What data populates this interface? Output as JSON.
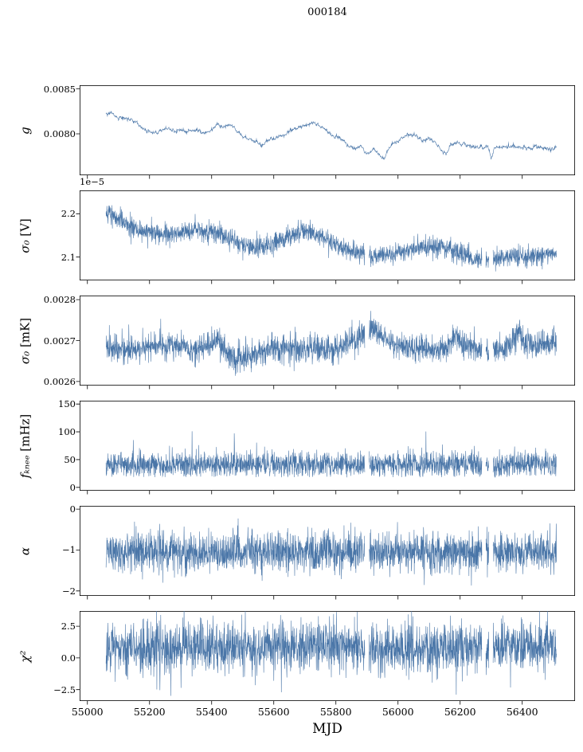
{
  "chart_data": {
    "type": "line",
    "title": "000184",
    "xlabel": "MJD",
    "color": "#4a76a8",
    "xlim": [
      54975,
      56570
    ],
    "x_data_range": [
      55060,
      56510
    ],
    "x_ticks": [
      55000,
      55200,
      55400,
      55600,
      55800,
      56000,
      56200,
      56400
    ],
    "x_tick_labels": [
      "55000",
      "55200",
      "55400",
      "55600",
      "55800",
      "56000",
      "56200",
      "56400"
    ],
    "gaps": [
      [
        55893,
        55906
      ],
      [
        56270,
        56283
      ],
      [
        56293,
        56306
      ]
    ],
    "panels": [
      {
        "ylabel": "g",
        "ylabel_unit": "",
        "ticks": [
          0.008,
          0.0085
        ],
        "tick_labels": [
          "0.0080",
          "0.0085"
        ],
        "ylim": [
          0.00754,
          0.00854
        ],
        "kind": "smooth",
        "noise": 9.5e-06,
        "keypoints": {
          "x": [
            55060,
            55080,
            55100,
            55120,
            55140,
            55160,
            55180,
            55200,
            55220,
            55240,
            55260,
            55280,
            55300,
            55320,
            55340,
            55360,
            55380,
            55400,
            55420,
            55440,
            55460,
            55480,
            55500,
            55520,
            55540,
            55560,
            55580,
            55600,
            55620,
            55640,
            55660,
            55680,
            55700,
            55720,
            55740,
            55760,
            55780,
            55800,
            55820,
            55840,
            55860,
            55880,
            55900,
            55920,
            55940,
            55955,
            55965,
            55980,
            56000,
            56020,
            56040,
            56060,
            56080,
            56100,
            56120,
            56140,
            56155,
            56170,
            56190,
            56210,
            56230,
            56250,
            56270,
            56290,
            56300,
            56310,
            56330,
            56350,
            56370,
            56390,
            56410,
            56430,
            56450,
            56470,
            56490,
            56510
          ],
          "y": [
            0.00822,
            0.00821,
            0.00817,
            0.00818,
            0.00816,
            0.00812,
            0.00806,
            0.00803,
            0.00801,
            0.00804,
            0.00806,
            0.00803,
            0.00804,
            0.00802,
            0.00804,
            0.00803,
            0.008,
            0.00806,
            0.0081,
            0.00807,
            0.0081,
            0.00804,
            0.00797,
            0.00795,
            0.00791,
            0.00788,
            0.00793,
            0.00795,
            0.00797,
            0.008,
            0.00804,
            0.00807,
            0.00809,
            0.00812,
            0.0081,
            0.00807,
            0.008,
            0.00797,
            0.00794,
            0.00787,
            0.00783,
            0.00786,
            0.00778,
            0.00783,
            0.00777,
            0.0077,
            0.0078,
            0.00788,
            0.00792,
            0.00796,
            0.008,
            0.00797,
            0.00792,
            0.00795,
            0.0079,
            0.00781,
            0.00776,
            0.00788,
            0.0079,
            0.00789,
            0.00786,
            0.00786,
            0.00785,
            0.00786,
            0.00772,
            0.00784,
            0.00786,
            0.00785,
            0.00787,
            0.00785,
            0.00786,
            0.00784,
            0.00786,
            0.00784,
            0.00783,
            0.00784
          ]
        }
      },
      {
        "ylabel": "σ₀",
        "ylabel_unit": " [V]",
        "offset_label": "1e−5",
        "ticks": [
          2.1,
          2.2
        ],
        "tick_labels": [
          "2.1",
          "2.2"
        ],
        "ylim": [
          2.046,
          2.254
        ],
        "kind": "noisy",
        "noise": 0.012,
        "trend": {
          "x": [
            55060,
            55100,
            55150,
            55200,
            55250,
            55300,
            55350,
            55400,
            55450,
            55500,
            55550,
            55600,
            55650,
            55700,
            55750,
            55800,
            55850,
            55900,
            55950,
            56000,
            56050,
            56100,
            56150,
            56200,
            56250,
            56300,
            56350,
            56400,
            56450,
            56510
          ],
          "y": [
            2.205,
            2.19,
            2.165,
            2.158,
            2.152,
            2.158,
            2.162,
            2.162,
            2.148,
            2.128,
            2.12,
            2.13,
            2.148,
            2.158,
            2.15,
            2.128,
            2.112,
            2.105,
            2.105,
            2.11,
            2.118,
            2.128,
            2.122,
            2.108,
            2.095,
            2.092,
            2.1,
            2.1,
            2.105,
            2.108
          ]
        }
      },
      {
        "ylabel": "σ₀",
        "ylabel_unit": " [mK]",
        "ticks": [
          0.0026,
          0.0027,
          0.0028
        ],
        "tick_labels": [
          "0.0026",
          "0.0027",
          "0.0028"
        ],
        "ylim": [
          0.00259,
          0.00281
        ],
        "kind": "noisy",
        "noise": 1.65e-05,
        "spike_prob": 0.004,
        "spike_amp": 6e-05,
        "spike_sign": 1,
        "trend": {
          "x": [
            55060,
            55150,
            55250,
            55350,
            55420,
            55470,
            55510,
            55600,
            55700,
            55800,
            55870,
            55910,
            55950,
            55990,
            56050,
            56100,
            56150,
            56190,
            56210,
            56250,
            56300,
            56350,
            56390,
            56410,
            56450,
            56510
          ],
          "y": [
            0.00268,
            0.00268,
            0.00269,
            0.00268,
            0.0027,
            0.00265,
            0.00266,
            0.00268,
            0.00268,
            0.00268,
            0.0027,
            0.00273,
            0.00271,
            0.00269,
            0.00268,
            0.00268,
            0.00268,
            0.00271,
            0.00269,
            0.00268,
            0.00268,
            0.00268,
            0.00272,
            0.00269,
            0.00269,
            0.0027
          ]
        }
      },
      {
        "ylabel": "fₖₙₑₑ",
        "ylabel_unit": " [mHz]",
        "ticks": [
          0,
          50,
          100,
          150
        ],
        "tick_labels": [
          "0",
          "50",
          "100",
          "150"
        ],
        "ylim": [
          -6,
          156
        ],
        "kind": "noisy",
        "noise": 11.5,
        "clip_low": 18,
        "spike_prob": 0.006,
        "spike_amp": 55,
        "spike_sign": 1,
        "trend": {
          "x": [
            55060,
            56510
          ],
          "y": [
            41,
            41
          ]
        }
      },
      {
        "ylabel": "α",
        "ylabel_unit": "",
        "ticks": [
          0,
          -1,
          -2
        ],
        "tick_labels": [
          "0",
          "−1",
          "−2"
        ],
        "ylim": [
          -2.12,
          0.08
        ],
        "kind": "noisy",
        "noise": 0.25,
        "trend": {
          "x": [
            55060,
            56510
          ],
          "y": [
            -1.05,
            -1.05
          ]
        }
      },
      {
        "ylabel": "χ²",
        "ylabel_unit": "",
        "ticks": [
          2.5,
          0.0,
          -2.5
        ],
        "tick_labels": [
          "2.5",
          "0.0",
          "−2.5"
        ],
        "ylim": [
          -3.4,
          3.7
        ],
        "kind": "noisy",
        "noise": 1.0,
        "trend": {
          "x": [
            55060,
            56510
          ],
          "y": [
            0.85,
            0.85
          ]
        }
      }
    ]
  }
}
